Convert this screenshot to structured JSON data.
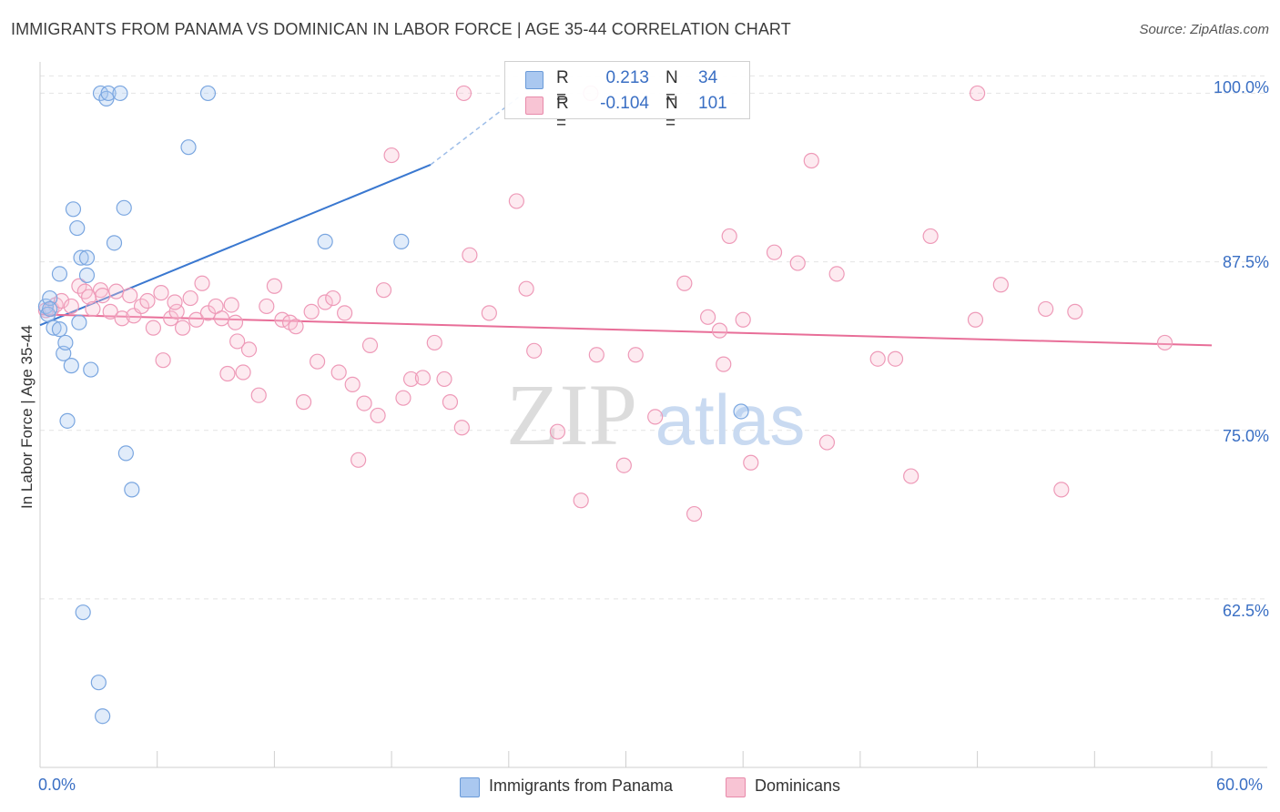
{
  "title": "IMMIGRANTS FROM PANAMA VS DOMINICAN IN LABOR FORCE | AGE 35-44 CORRELATION CHART",
  "source": "Source: ZipAtlas.com",
  "watermark": {
    "zip": "ZIP",
    "atlas": "atlas"
  },
  "legend": {
    "r_label": "R =",
    "n_label": "N =",
    "rows": [
      {
        "r": "0.213",
        "n": "34",
        "color": "#aac8f0",
        "border": "#6a9ad8"
      },
      {
        "r": "-0.104",
        "n": "101",
        "color": "#f8c4d4",
        "border": "#e88aaa"
      }
    ]
  },
  "bottom_legend": [
    {
      "label": "Immigrants from Panama",
      "color": "#aac8f0",
      "border": "#6a9ad8"
    },
    {
      "label": "Dominicans",
      "color": "#f8c4d4",
      "border": "#e88aaa"
    }
  ],
  "colors": {
    "blue": "#3a78d0",
    "pink": "#e86e98",
    "blue_point": "#7aa6e0",
    "pink_point": "#ee9ab8",
    "axis_text": "#3a6fc4"
  },
  "chart_data": {
    "type": "scatter",
    "title": "IMMIGRANTS FROM PANAMA VS DOMINICAN IN LABOR FORCE | AGE 35-44 CORRELATION CHART",
    "xlabel": "",
    "ylabel": "In Labor Force | Age 35-44",
    "xlim": [
      0,
      60
    ],
    "ylim": [
      50,
      103
    ],
    "x_tick_labels": [
      "0.0%",
      "60.0%"
    ],
    "y_ticks": [
      62.5,
      75.0,
      87.5,
      100.0
    ],
    "y_tick_labels": [
      "62.5%",
      "75.0%",
      "87.5%",
      "100.0%"
    ],
    "series": [
      {
        "name": "Immigrants from Panama",
        "R": 0.213,
        "N": 34,
        "trend": {
          "x0": 0.0,
          "y0": 82.8,
          "x1": 20.0,
          "y1": 94.7,
          "dashed_to_x": 24.5,
          "dashed_to_y": 99.7
        },
        "points": [
          [
            0.3,
            84.2
          ],
          [
            0.4,
            83.6
          ],
          [
            0.5,
            84.8
          ],
          [
            0.5,
            84.0
          ],
          [
            0.7,
            82.6
          ],
          [
            1.0,
            82.5
          ],
          [
            1.0,
            86.6
          ],
          [
            1.2,
            80.7
          ],
          [
            1.3,
            81.5
          ],
          [
            1.4,
            75.7
          ],
          [
            1.6,
            79.8
          ],
          [
            1.7,
            91.4
          ],
          [
            1.9,
            90.0
          ],
          [
            2.0,
            83.0
          ],
          [
            2.1,
            87.8
          ],
          [
            2.4,
            86.5
          ],
          [
            2.4,
            87.8
          ],
          [
            2.6,
            79.5
          ],
          [
            2.2,
            61.5
          ],
          [
            3.0,
            56.3
          ],
          [
            3.2,
            53.8
          ],
          [
            3.1,
            100.0
          ],
          [
            3.4,
            99.6
          ],
          [
            3.5,
            100.0
          ],
          [
            3.8,
            88.9
          ],
          [
            4.1,
            100.0
          ],
          [
            4.3,
            91.5
          ],
          [
            4.4,
            73.3
          ],
          [
            4.7,
            70.6
          ],
          [
            7.6,
            96.0
          ],
          [
            8.6,
            100.0
          ],
          [
            14.6,
            89.0
          ],
          [
            18.5,
            89.0
          ],
          [
            35.9,
            76.4
          ]
        ]
      },
      {
        "name": "Dominicans",
        "R": -0.104,
        "N": 101,
        "trend": {
          "x0": 0.0,
          "y0": 83.6,
          "x1": 60.0,
          "y1": 81.3
        },
        "points": [
          [
            0.3,
            83.9
          ],
          [
            0.6,
            84.0
          ],
          [
            0.8,
            84.3
          ],
          [
            1.1,
            84.6
          ],
          [
            1.6,
            84.2
          ],
          [
            2.0,
            85.7
          ],
          [
            2.3,
            85.3
          ],
          [
            2.5,
            84.9
          ],
          [
            2.7,
            84.0
          ],
          [
            3.1,
            85.4
          ],
          [
            3.2,
            85.0
          ],
          [
            3.6,
            83.8
          ],
          [
            3.9,
            85.3
          ],
          [
            4.2,
            83.3
          ],
          [
            4.6,
            85.0
          ],
          [
            4.8,
            83.5
          ],
          [
            5.2,
            84.2
          ],
          [
            5.5,
            84.6
          ],
          [
            5.8,
            82.6
          ],
          [
            6.2,
            85.2
          ],
          [
            6.3,
            80.2
          ],
          [
            6.7,
            83.3
          ],
          [
            7.0,
            83.8
          ],
          [
            7.3,
            82.6
          ],
          [
            7.7,
            84.8
          ],
          [
            8.0,
            83.2
          ],
          [
            8.3,
            85.9
          ],
          [
            8.6,
            83.7
          ],
          [
            9.0,
            84.2
          ],
          [
            9.3,
            83.3
          ],
          [
            9.6,
            79.2
          ],
          [
            9.8,
            84.3
          ],
          [
            10.0,
            83.0
          ],
          [
            10.4,
            79.3
          ],
          [
            10.7,
            81.0
          ],
          [
            11.2,
            77.6
          ],
          [
            11.6,
            84.2
          ],
          [
            12.0,
            85.7
          ],
          [
            12.4,
            83.2
          ],
          [
            12.8,
            83.0
          ],
          [
            13.1,
            82.7
          ],
          [
            13.5,
            77.1
          ],
          [
            13.9,
            83.8
          ],
          [
            14.2,
            80.1
          ],
          [
            14.6,
            84.5
          ],
          [
            15.0,
            84.8
          ],
          [
            15.3,
            79.3
          ],
          [
            15.6,
            83.7
          ],
          [
            16.0,
            78.4
          ],
          [
            16.3,
            72.8
          ],
          [
            16.6,
            77.0
          ],
          [
            16.9,
            81.3
          ],
          [
            17.3,
            76.1
          ],
          [
            17.6,
            85.4
          ],
          [
            18.0,
            95.4
          ],
          [
            18.6,
            77.4
          ],
          [
            19.0,
            78.8
          ],
          [
            19.6,
            78.9
          ],
          [
            20.2,
            81.5
          ],
          [
            20.7,
            78.8
          ],
          [
            21.0,
            77.1
          ],
          [
            21.6,
            75.2
          ],
          [
            22.0,
            88.0
          ],
          [
            23.0,
            83.7
          ],
          [
            24.4,
            92.0
          ],
          [
            24.9,
            85.5
          ],
          [
            25.3,
            80.9
          ],
          [
            26.5,
            74.9
          ],
          [
            27.7,
            69.8
          ],
          [
            28.5,
            80.6
          ],
          [
            29.9,
            72.4
          ],
          [
            30.5,
            80.6
          ],
          [
            31.5,
            76.0
          ],
          [
            33.0,
            85.9
          ],
          [
            33.5,
            68.8
          ],
          [
            34.2,
            83.4
          ],
          [
            34.8,
            82.4
          ],
          [
            35.0,
            79.9
          ],
          [
            35.3,
            89.4
          ],
          [
            36.0,
            83.2
          ],
          [
            36.4,
            72.6
          ],
          [
            37.6,
            88.2
          ],
          [
            38.8,
            87.4
          ],
          [
            39.5,
            95.0
          ],
          [
            40.3,
            74.1
          ],
          [
            40.8,
            86.6
          ],
          [
            42.9,
            80.3
          ],
          [
            43.8,
            80.3
          ],
          [
            44.6,
            71.6
          ],
          [
            45.6,
            89.4
          ],
          [
            47.9,
            83.2
          ],
          [
            48.0,
            100.0
          ],
          [
            49.2,
            85.8
          ],
          [
            51.5,
            84.0
          ],
          [
            52.3,
            70.6
          ],
          [
            53.0,
            83.8
          ],
          [
            57.6,
            81.5
          ],
          [
            21.7,
            100.0
          ],
          [
            28.2,
            100.0
          ],
          [
            10.1,
            81.6
          ],
          [
            6.9,
            84.5
          ]
        ]
      }
    ]
  }
}
